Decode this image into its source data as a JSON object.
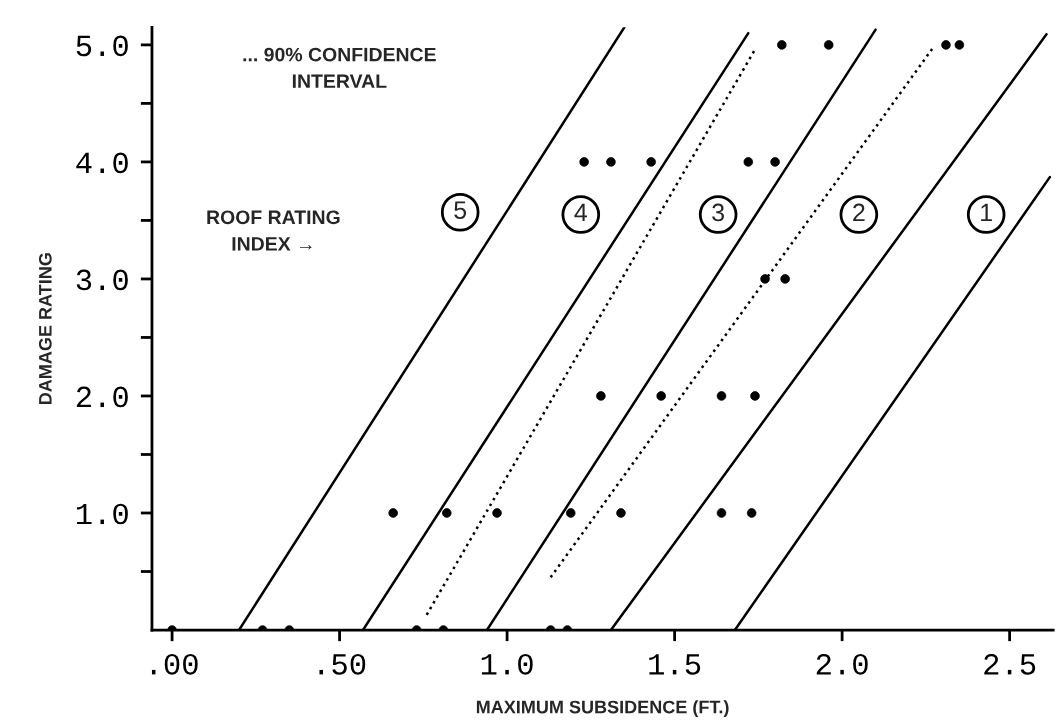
{
  "chart_data": {
    "type": "scatter",
    "xlabel": "MAXIMUM SUBSIDENCE (FT.)",
    "ylabel": "DAMAGE RATING",
    "xlim": [
      -0.06,
      2.63
    ],
    "ylim": [
      0,
      5.15
    ],
    "xticks": [
      {
        "value": 0,
        "label": ".00"
      },
      {
        "value": 0.5,
        "label": ".50"
      },
      {
        "value": 1.0,
        "label": "1.0"
      },
      {
        "value": 1.5,
        "label": "1.5"
      },
      {
        "value": 2.0,
        "label": "2.0"
      },
      {
        "value": 2.5,
        "label": "2.5"
      }
    ],
    "yticks": [
      {
        "value": 0.5,
        "label": null
      },
      {
        "value": 1.0,
        "label": "1.0"
      },
      {
        "value": 1.5,
        "label": null
      },
      {
        "value": 2.0,
        "label": "2.0"
      },
      {
        "value": 2.5,
        "label": null
      },
      {
        "value": 3.0,
        "label": "3.0"
      },
      {
        "value": 3.5,
        "label": null
      },
      {
        "value": 4.0,
        "label": "4.0"
      },
      {
        "value": 4.5,
        "label": null
      },
      {
        "value": 5.0,
        "label": "5.0"
      }
    ],
    "grid": false,
    "series": [
      {
        "marker": "circle",
        "color": "#000000",
        "x": [
          0.0,
          0.27,
          0.35,
          0.73,
          0.81,
          1.13,
          1.18,
          0.66,
          0.82,
          0.97,
          1.19,
          1.34,
          1.64,
          1.73,
          1.28,
          1.46,
          1.64,
          1.74,
          1.77,
          1.83,
          1.23,
          1.31,
          1.43,
          1.72,
          1.8,
          1.82,
          1.96,
          2.31,
          2.35
        ],
        "values": [
          0,
          0,
          0,
          0,
          0,
          0,
          0,
          1,
          1,
          1,
          1,
          1,
          1,
          1,
          2,
          2,
          2,
          2,
          3,
          3,
          4,
          4,
          4,
          4,
          4,
          5,
          5,
          5,
          5
        ]
      },
      {
        "type": "line",
        "color": "#000000",
        "line_style": "solid",
        "x": [
          0.2,
          1.35
        ],
        "values": [
          0,
          5.15
        ]
      },
      {
        "type": "line",
        "color": "#000000",
        "line_style": "solid",
        "x": [
          0.57,
          1.72
        ],
        "values": [
          0,
          5.1
        ]
      },
      {
        "type": "line",
        "color": "#000000",
        "line_style": "solid",
        "x": [
          0.94,
          2.1
        ],
        "values": [
          0,
          5.13
        ]
      },
      {
        "type": "line",
        "color": "#000000",
        "line_style": "solid",
        "x": [
          1.31,
          2.61
        ],
        "values": [
          0,
          5.09
        ]
      },
      {
        "type": "line",
        "color": "#000000",
        "line_style": "solid",
        "x": [
          1.68,
          2.62
        ],
        "values": [
          0,
          3.87
        ]
      },
      {
        "type": "line",
        "color": "#000000",
        "line_style": "dotted",
        "x": [
          0.76,
          1.74
        ],
        "values": [
          0.13,
          4.96
        ]
      },
      {
        "type": "line",
        "color": "#000000",
        "line_style": "dotted",
        "x": [
          1.13,
          2.27
        ],
        "values": [
          0.45,
          4.97
        ]
      }
    ],
    "annotations": [
      "... 90% CONFIDENCE\nINTERVAL",
      "ROOF RATING\nINDEX →",
      {
        "text": "5",
        "x": 0.86,
        "y": 3.57
      },
      {
        "text": "4",
        "x": 1.22,
        "y": 3.55
      },
      {
        "text": "3",
        "x": 1.63,
        "y": 3.55
      },
      {
        "text": "2",
        "x": 2.05,
        "y": 3.55
      },
      {
        "text": "1",
        "x": 2.43,
        "y": 3.55
      }
    ]
  }
}
